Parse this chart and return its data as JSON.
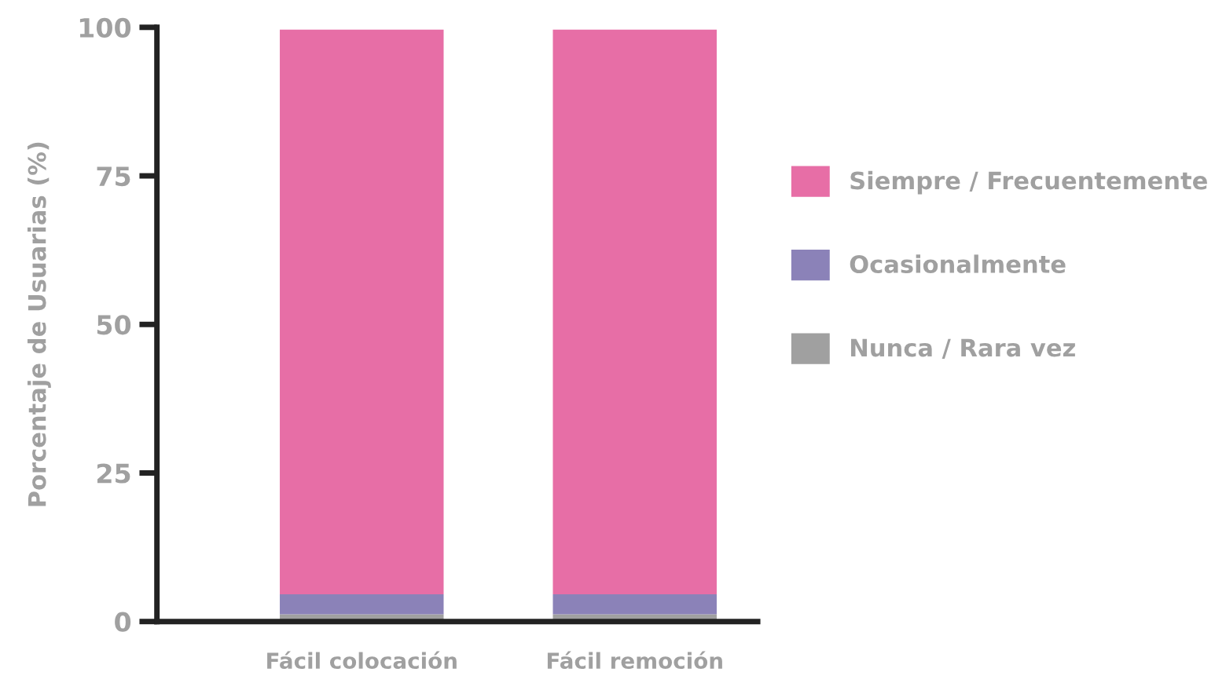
{
  "chart_data": {
    "type": "bar",
    "stacked": true,
    "ylabel": "Porcentaje de Usuarias (%)",
    "categories": [
      "Fácil colocación",
      "Fácil remoción"
    ],
    "series": [
      {
        "name": "Nunca / Rara vez",
        "color": "#a0a0a0",
        "values": [
          1.2,
          1.2
        ]
      },
      {
        "name": "Ocasionalmente",
        "color": "#8b82b8",
        "values": [
          3.4,
          3.4
        ]
      },
      {
        "name": "Siempre / Frecuentemente",
        "color": "#e76ea6",
        "values": [
          95,
          95
        ]
      }
    ],
    "ylim": [
      0,
      100
    ],
    "yticks": [
      0,
      25,
      50,
      75,
      100
    ],
    "grid": false,
    "legend": "right"
  }
}
